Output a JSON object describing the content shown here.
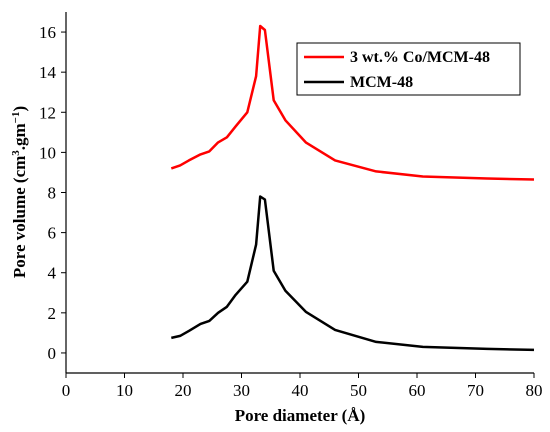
{
  "chart_data": {
    "type": "line",
    "xlabel": "Pore  diameter (Å)",
    "ylabel_main": "Pore volume (cm",
    "ylabel_sup1": "3",
    "ylabel_mid": ".gm",
    "ylabel_sup2": "−1",
    "ylabel_end": ")",
    "xlim": [
      0,
      80
    ],
    "ylim": [
      -1,
      17
    ],
    "xticks": [
      0,
      10,
      20,
      30,
      40,
      50,
      60,
      70,
      80
    ],
    "yticks": [
      0,
      2,
      4,
      6,
      8,
      10,
      12,
      14,
      16
    ],
    "grid": false,
    "legend_position": "top-right",
    "series": [
      {
        "name": "3 wt.% Co/MCM-48",
        "color": "#ff0000",
        "x": [
          18,
          19.5,
          21,
          23,
          24.5,
          26,
          27.5,
          29,
          31,
          32.5,
          33.2,
          34,
          35.5,
          37.5,
          41,
          46,
          53,
          61,
          72,
          80
        ],
        "y": [
          9.2,
          9.35,
          9.6,
          9.9,
          10.05,
          10.5,
          10.75,
          11.3,
          12.0,
          13.8,
          16.3,
          16.1,
          12.6,
          11.6,
          10.5,
          9.6,
          9.05,
          8.8,
          8.7,
          8.65
        ]
      },
      {
        "name": "MCM-48",
        "color": "#000000",
        "x": [
          18,
          19.5,
          21,
          23,
          24.5,
          26,
          27.5,
          29,
          31,
          32.5,
          33.2,
          34,
          35.5,
          37.5,
          41,
          46,
          53,
          61,
          72,
          80
        ],
        "y": [
          0.75,
          0.85,
          1.1,
          1.45,
          1.6,
          2.0,
          2.3,
          2.9,
          3.55,
          5.4,
          7.8,
          7.65,
          4.1,
          3.1,
          2.05,
          1.15,
          0.55,
          0.3,
          0.2,
          0.15
        ]
      }
    ]
  }
}
